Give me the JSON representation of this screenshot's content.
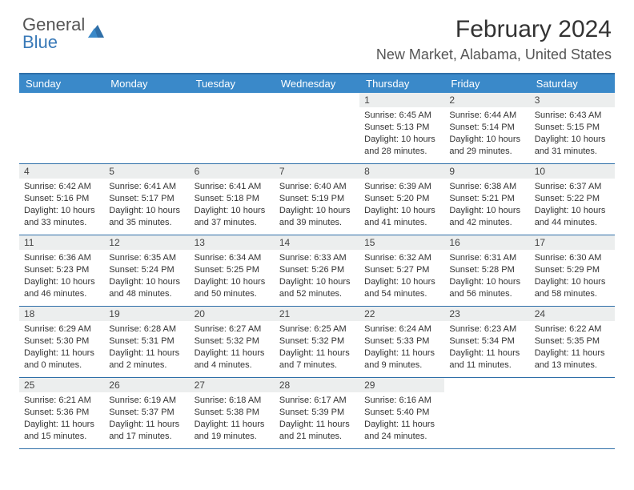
{
  "logo": {
    "line1": "General",
    "line2": "Blue"
  },
  "title": "February 2024",
  "location": "New Market, Alabama, United States",
  "colors": {
    "header_bg": "#3a89c9",
    "border": "#2f6fa8",
    "daynum_bg": "#eceeee",
    "logo_gray": "#555555",
    "logo_blue": "#3a7ab8"
  },
  "day_names": [
    "Sunday",
    "Monday",
    "Tuesday",
    "Wednesday",
    "Thursday",
    "Friday",
    "Saturday"
  ],
  "weeks": [
    [
      {
        "empty": true
      },
      {
        "empty": true
      },
      {
        "empty": true
      },
      {
        "empty": true
      },
      {
        "num": "1",
        "sunrise": "Sunrise: 6:45 AM",
        "sunset": "Sunset: 5:13 PM",
        "daylight": "Daylight: 10 hours and 28 minutes."
      },
      {
        "num": "2",
        "sunrise": "Sunrise: 6:44 AM",
        "sunset": "Sunset: 5:14 PM",
        "daylight": "Daylight: 10 hours and 29 minutes."
      },
      {
        "num": "3",
        "sunrise": "Sunrise: 6:43 AM",
        "sunset": "Sunset: 5:15 PM",
        "daylight": "Daylight: 10 hours and 31 minutes."
      }
    ],
    [
      {
        "num": "4",
        "sunrise": "Sunrise: 6:42 AM",
        "sunset": "Sunset: 5:16 PM",
        "daylight": "Daylight: 10 hours and 33 minutes."
      },
      {
        "num": "5",
        "sunrise": "Sunrise: 6:41 AM",
        "sunset": "Sunset: 5:17 PM",
        "daylight": "Daylight: 10 hours and 35 minutes."
      },
      {
        "num": "6",
        "sunrise": "Sunrise: 6:41 AM",
        "sunset": "Sunset: 5:18 PM",
        "daylight": "Daylight: 10 hours and 37 minutes."
      },
      {
        "num": "7",
        "sunrise": "Sunrise: 6:40 AM",
        "sunset": "Sunset: 5:19 PM",
        "daylight": "Daylight: 10 hours and 39 minutes."
      },
      {
        "num": "8",
        "sunrise": "Sunrise: 6:39 AM",
        "sunset": "Sunset: 5:20 PM",
        "daylight": "Daylight: 10 hours and 41 minutes."
      },
      {
        "num": "9",
        "sunrise": "Sunrise: 6:38 AM",
        "sunset": "Sunset: 5:21 PM",
        "daylight": "Daylight: 10 hours and 42 minutes."
      },
      {
        "num": "10",
        "sunrise": "Sunrise: 6:37 AM",
        "sunset": "Sunset: 5:22 PM",
        "daylight": "Daylight: 10 hours and 44 minutes."
      }
    ],
    [
      {
        "num": "11",
        "sunrise": "Sunrise: 6:36 AM",
        "sunset": "Sunset: 5:23 PM",
        "daylight": "Daylight: 10 hours and 46 minutes."
      },
      {
        "num": "12",
        "sunrise": "Sunrise: 6:35 AM",
        "sunset": "Sunset: 5:24 PM",
        "daylight": "Daylight: 10 hours and 48 minutes."
      },
      {
        "num": "13",
        "sunrise": "Sunrise: 6:34 AM",
        "sunset": "Sunset: 5:25 PM",
        "daylight": "Daylight: 10 hours and 50 minutes."
      },
      {
        "num": "14",
        "sunrise": "Sunrise: 6:33 AM",
        "sunset": "Sunset: 5:26 PM",
        "daylight": "Daylight: 10 hours and 52 minutes."
      },
      {
        "num": "15",
        "sunrise": "Sunrise: 6:32 AM",
        "sunset": "Sunset: 5:27 PM",
        "daylight": "Daylight: 10 hours and 54 minutes."
      },
      {
        "num": "16",
        "sunrise": "Sunrise: 6:31 AM",
        "sunset": "Sunset: 5:28 PM",
        "daylight": "Daylight: 10 hours and 56 minutes."
      },
      {
        "num": "17",
        "sunrise": "Sunrise: 6:30 AM",
        "sunset": "Sunset: 5:29 PM",
        "daylight": "Daylight: 10 hours and 58 minutes."
      }
    ],
    [
      {
        "num": "18",
        "sunrise": "Sunrise: 6:29 AM",
        "sunset": "Sunset: 5:30 PM",
        "daylight": "Daylight: 11 hours and 0 minutes."
      },
      {
        "num": "19",
        "sunrise": "Sunrise: 6:28 AM",
        "sunset": "Sunset: 5:31 PM",
        "daylight": "Daylight: 11 hours and 2 minutes."
      },
      {
        "num": "20",
        "sunrise": "Sunrise: 6:27 AM",
        "sunset": "Sunset: 5:32 PM",
        "daylight": "Daylight: 11 hours and 4 minutes."
      },
      {
        "num": "21",
        "sunrise": "Sunrise: 6:25 AM",
        "sunset": "Sunset: 5:32 PM",
        "daylight": "Daylight: 11 hours and 7 minutes."
      },
      {
        "num": "22",
        "sunrise": "Sunrise: 6:24 AM",
        "sunset": "Sunset: 5:33 PM",
        "daylight": "Daylight: 11 hours and 9 minutes."
      },
      {
        "num": "23",
        "sunrise": "Sunrise: 6:23 AM",
        "sunset": "Sunset: 5:34 PM",
        "daylight": "Daylight: 11 hours and 11 minutes."
      },
      {
        "num": "24",
        "sunrise": "Sunrise: 6:22 AM",
        "sunset": "Sunset: 5:35 PM",
        "daylight": "Daylight: 11 hours and 13 minutes."
      }
    ],
    [
      {
        "num": "25",
        "sunrise": "Sunrise: 6:21 AM",
        "sunset": "Sunset: 5:36 PM",
        "daylight": "Daylight: 11 hours and 15 minutes."
      },
      {
        "num": "26",
        "sunrise": "Sunrise: 6:19 AM",
        "sunset": "Sunset: 5:37 PM",
        "daylight": "Daylight: 11 hours and 17 minutes."
      },
      {
        "num": "27",
        "sunrise": "Sunrise: 6:18 AM",
        "sunset": "Sunset: 5:38 PM",
        "daylight": "Daylight: 11 hours and 19 minutes."
      },
      {
        "num": "28",
        "sunrise": "Sunrise: 6:17 AM",
        "sunset": "Sunset: 5:39 PM",
        "daylight": "Daylight: 11 hours and 21 minutes."
      },
      {
        "num": "29",
        "sunrise": "Sunrise: 6:16 AM",
        "sunset": "Sunset: 5:40 PM",
        "daylight": "Daylight: 11 hours and 24 minutes."
      },
      {
        "empty": true
      },
      {
        "empty": true
      }
    ]
  ]
}
